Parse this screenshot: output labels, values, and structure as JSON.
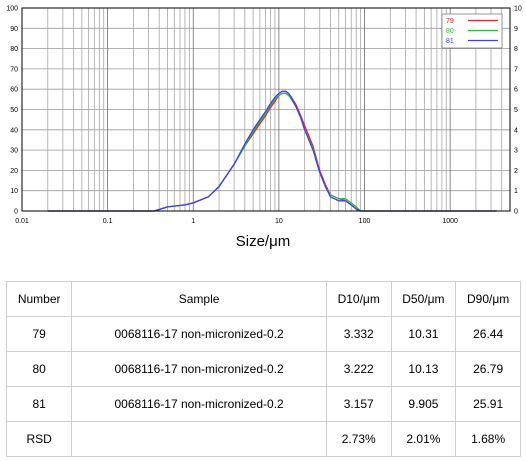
{
  "chart_data": {
    "type": "line",
    "xlabel": "Size/μm",
    "x_scale": "log",
    "xlim": [
      0.01,
      5000
    ],
    "ylim": [
      0,
      100
    ],
    "ylim_right": [
      0,
      10
    ],
    "x_ticks": [
      "0.01",
      "0.1",
      "1",
      "10",
      "100",
      "1000"
    ],
    "x_tick_values": [
      0.01,
      0.1,
      1,
      10,
      100,
      1000
    ],
    "y_ticks": [
      0,
      10,
      20,
      30,
      40,
      50,
      60,
      70,
      80,
      90,
      100
    ],
    "y_ticks_right": [
      0,
      1,
      2,
      3,
      4,
      5,
      6,
      7,
      8,
      9,
      10
    ],
    "grid": true,
    "legend_position": "top-right",
    "series": [
      {
        "name": "79",
        "color": "#e8242a",
        "x": [
          0.02,
          0.35,
          0.5,
          0.8,
          1.0,
          1.5,
          2.0,
          3.0,
          4.0,
          5.0,
          6.0,
          7.0,
          8.0,
          9.0,
          10.0,
          11.0,
          12.0,
          13.0,
          14.0,
          16.0,
          18.0,
          20.0,
          25.0,
          30.0,
          35.0,
          40.0,
          50.0,
          60.0,
          70.0,
          80.0,
          90.0,
          100.0,
          3500
        ],
        "y": [
          0,
          0,
          2,
          3,
          4,
          7,
          12,
          23,
          32,
          38,
          43,
          47,
          51,
          54,
          57,
          58,
          58,
          57,
          56,
          52,
          47,
          42,
          32,
          20,
          13,
          8,
          6,
          5,
          3,
          1,
          0,
          0,
          0
        ]
      },
      {
        "name": "80",
        "color": "#2db83d",
        "x": [
          0.02,
          0.35,
          0.5,
          0.8,
          1.0,
          1.5,
          2.0,
          3.0,
          4.0,
          5.0,
          6.0,
          7.0,
          8.0,
          9.0,
          10.0,
          11.0,
          12.0,
          13.0,
          14.0,
          16.0,
          18.0,
          20.0,
          25.0,
          30.0,
          35.0,
          40.0,
          50.0,
          60.0,
          70.0,
          80.0,
          90.0,
          100.0,
          3500
        ],
        "y": [
          0,
          0,
          2,
          3,
          4,
          7,
          12,
          23,
          32,
          39,
          44,
          48,
          52,
          55,
          57,
          58,
          58,
          57,
          55,
          51,
          46,
          40,
          31,
          19,
          12,
          8,
          6,
          6,
          4,
          2,
          0,
          0,
          0
        ]
      },
      {
        "name": "81",
        "color": "#4040e6",
        "x": [
          0.02,
          0.35,
          0.5,
          0.8,
          1.0,
          1.5,
          2.0,
          3.0,
          4.0,
          5.0,
          6.0,
          7.0,
          8.0,
          9.0,
          10.0,
          11.0,
          12.0,
          13.0,
          14.0,
          16.0,
          18.0,
          20.0,
          25.0,
          30.0,
          35.0,
          40.0,
          50.0,
          60.0,
          70.0,
          80.0,
          90.0,
          100.0,
          3500
        ],
        "y": [
          0,
          0,
          2,
          3,
          4,
          7,
          12,
          23,
          33,
          40,
          45,
          49,
          53,
          56,
          58,
          59,
          59,
          58,
          56,
          51,
          46,
          40,
          30,
          19,
          12,
          7,
          5,
          5,
          3,
          1,
          0,
          0,
          0
        ]
      }
    ]
  },
  "table": {
    "headers": [
      "Number",
      "Sample",
      "D10/μm",
      "D50/μm",
      "D90/μm"
    ],
    "rows": [
      [
        "79",
        "0068116-17 non-micronized-0.2",
        "3.332",
        "10.31",
        "26.44"
      ],
      [
        "80",
        "0068116-17 non-micronized-0.2",
        "3.222",
        "10.13",
        "26.79"
      ],
      [
        "81",
        "0068116-17 non-micronized-0.2",
        "3.157",
        "9.905",
        "25.91"
      ],
      [
        "RSD",
        "",
        "2.73%",
        "2.01%",
        "1.68%"
      ]
    ]
  }
}
